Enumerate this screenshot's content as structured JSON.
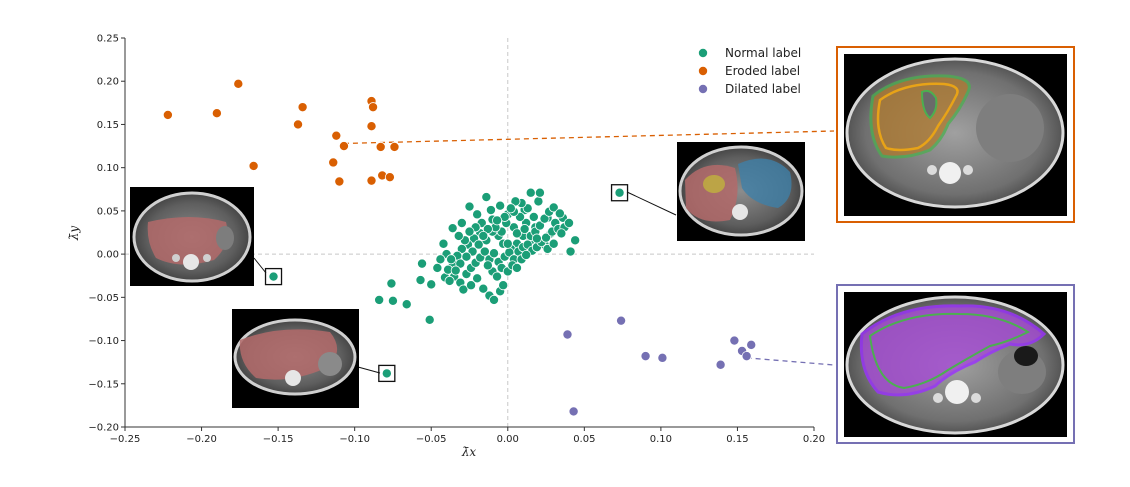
{
  "chart_data": {
    "type": "scatter",
    "xlabel": "λ̄x",
    "ylabel": "λ̄y",
    "xlim": [
      -0.25,
      0.2
    ],
    "ylim": [
      -0.2,
      0.25
    ],
    "x_ticks": [
      -0.25,
      -0.2,
      -0.15,
      -0.1,
      -0.05,
      0.0,
      0.05,
      0.1,
      0.15,
      0.2
    ],
    "x_tick_labels": [
      "−0.25",
      "−0.20",
      "−0.15",
      "−0.10",
      "−0.05",
      "0.00",
      "0.05",
      "0.10",
      "0.15",
      "0.20"
    ],
    "y_ticks": [
      -0.2,
      -0.15,
      -0.1,
      -0.05,
      0.0,
      0.05,
      0.1,
      0.15,
      0.2,
      0.25
    ],
    "y_tick_labels": [
      "−0.20",
      "−0.15",
      "−0.10",
      "−0.05",
      "0.00",
      "0.05",
      "0.10",
      "0.15",
      "0.20",
      "0.25"
    ],
    "grid": false,
    "zero_lines": true,
    "legend_position": "top-right",
    "series": [
      {
        "name": "Normal label",
        "color": "#1b9e77",
        "points": [
          [
            -0.153,
            -0.026
          ],
          [
            0.073,
            0.071
          ],
          [
            -0.079,
            -0.138
          ],
          [
            -0.084,
            -0.053
          ],
          [
            -0.075,
            -0.054
          ],
          [
            -0.066,
            -0.058
          ],
          [
            -0.051,
            -0.076
          ],
          [
            -0.057,
            -0.03
          ],
          [
            -0.056,
            -0.011
          ],
          [
            -0.05,
            -0.035
          ],
          [
            -0.076,
            -0.034
          ],
          [
            -0.041,
            -0.027
          ],
          [
            -0.042,
            0.012
          ],
          [
            -0.036,
            0.03
          ],
          [
            -0.03,
            0.036
          ],
          [
            -0.025,
            0.055
          ],
          [
            -0.02,
            0.046
          ],
          [
            -0.014,
            0.066
          ],
          [
            -0.01,
            0.04
          ],
          [
            -0.005,
            0.056
          ],
          [
            0.0,
            0.046
          ],
          [
            0.004,
            0.031
          ],
          [
            0.011,
            0.051
          ],
          [
            0.015,
            0.071
          ],
          [
            0.02,
            0.061
          ],
          [
            0.021,
            0.071
          ],
          [
            0.026,
            0.042
          ],
          [
            0.031,
            0.036
          ],
          [
            0.036,
            0.042
          ],
          [
            0.041,
            0.003
          ],
          [
            0.044,
            0.016
          ],
          [
            0.024,
            0.011
          ],
          [
            0.028,
            0.024
          ],
          [
            0.018,
            0.031
          ],
          [
            0.015,
            0.016
          ],
          [
            0.01,
            0.021
          ],
          [
            0.006,
            0.012
          ],
          [
            0.002,
            0.006
          ],
          [
            -0.003,
            0.012
          ],
          [
            -0.006,
            0.021
          ],
          [
            -0.01,
            0.026
          ],
          [
            -0.014,
            0.016
          ],
          [
            -0.018,
            0.024
          ],
          [
            -0.022,
            0.018
          ],
          [
            -0.026,
            0.011
          ],
          [
            -0.03,
            0.006
          ],
          [
            -0.033,
            -0.002
          ],
          [
            -0.036,
            -0.01
          ],
          [
            -0.039,
            -0.018
          ],
          [
            -0.035,
            -0.026
          ],
          [
            -0.031,
            -0.033
          ],
          [
            -0.027,
            -0.023
          ],
          [
            -0.024,
            -0.016
          ],
          [
            -0.021,
            -0.01
          ],
          [
            -0.018,
            -0.004
          ],
          [
            -0.015,
            0.003
          ],
          [
            -0.012,
            -0.006
          ],
          [
            -0.009,
            0.001
          ],
          [
            -0.006,
            -0.009
          ],
          [
            -0.004,
            -0.016
          ],
          [
            -0.002,
            -0.003
          ],
          [
            0.001,
            0.002
          ],
          [
            0.004,
            -0.006
          ],
          [
            0.007,
            0.003
          ],
          [
            0.01,
            0.008
          ],
          [
            0.013,
            0.011
          ],
          [
            0.016,
            0.004
          ],
          [
            0.019,
            0.008
          ],
          [
            0.022,
            0.014
          ],
          [
            0.025,
            0.019
          ],
          [
            0.029,
            0.026
          ],
          [
            0.033,
            0.029
          ],
          [
            0.037,
            0.031
          ],
          [
            0.012,
            0.036
          ],
          [
            0.008,
            0.043
          ],
          [
            0.004,
            0.049
          ],
          [
            -0.001,
            0.036
          ],
          [
            -0.004,
            0.026
          ],
          [
            -0.008,
            0.031
          ],
          [
            -0.011,
            0.051
          ],
          [
            -0.017,
            0.036
          ],
          [
            -0.021,
            0.031
          ],
          [
            -0.025,
            0.026
          ],
          [
            -0.028,
            0.016
          ],
          [
            -0.032,
            0.021
          ],
          [
            -0.04,
            0.0
          ],
          [
            -0.044,
            -0.006
          ],
          [
            -0.046,
            -0.016
          ],
          [
            -0.038,
            -0.031
          ],
          [
            -0.029,
            -0.041
          ],
          [
            -0.024,
            -0.036
          ],
          [
            -0.02,
            -0.028
          ],
          [
            -0.016,
            -0.04
          ],
          [
            -0.012,
            -0.048
          ],
          [
            -0.009,
            -0.053
          ],
          [
            -0.005,
            -0.043
          ],
          [
            -0.003,
            -0.036
          ],
          [
            -0.01,
            -0.02
          ],
          [
            -0.013,
            -0.013
          ],
          [
            -0.007,
            -0.026
          ],
          [
            0.0,
            -0.02
          ],
          [
            0.003,
            -0.013
          ],
          [
            0.006,
            -0.016
          ],
          [
            0.009,
            -0.006
          ],
          [
            0.012,
            -0.001
          ],
          [
            0.015,
            0.021
          ],
          [
            0.018,
            0.026
          ],
          [
            0.021,
            0.033
          ],
          [
            0.024,
            0.041
          ],
          [
            0.027,
            0.049
          ],
          [
            0.03,
            0.054
          ],
          [
            0.034,
            0.047
          ],
          [
            0.017,
            0.043
          ],
          [
            0.013,
            0.053
          ],
          [
            0.009,
            0.059
          ],
          [
            0.005,
            0.061
          ],
          [
            0.002,
            0.053
          ],
          [
            -0.002,
            0.043
          ],
          [
            -0.007,
            0.039
          ],
          [
            -0.013,
            0.029
          ],
          [
            -0.016,
            0.021
          ],
          [
            -0.019,
            0.011
          ],
          [
            -0.023,
            0.003
          ],
          [
            -0.027,
            -0.003
          ],
          [
            -0.031,
            -0.011
          ],
          [
            -0.034,
            -0.019
          ],
          [
            -0.037,
            -0.006
          ],
          [
            0.0,
            0.012
          ],
          [
            0.006,
            0.024
          ],
          [
            0.019,
            0.018
          ],
          [
            0.026,
            0.006
          ],
          [
            0.03,
            0.012
          ],
          [
            0.035,
            0.024
          ],
          [
            0.04,
            0.036
          ],
          [
            0.011,
            0.029
          ]
        ]
      },
      {
        "name": "Eroded label",
        "color": "#d95f02",
        "points": [
          [
            -0.222,
            0.161
          ],
          [
            -0.19,
            0.163
          ],
          [
            -0.176,
            0.197
          ],
          [
            -0.166,
            0.102
          ],
          [
            -0.137,
            0.15
          ],
          [
            -0.134,
            0.17
          ],
          [
            -0.114,
            0.106
          ],
          [
            -0.112,
            0.137
          ],
          [
            -0.11,
            0.084
          ],
          [
            -0.107,
            0.125
          ],
          [
            -0.089,
            0.177
          ],
          [
            -0.088,
            0.17
          ],
          [
            -0.089,
            0.148
          ],
          [
            -0.089,
            0.085
          ],
          [
            -0.083,
            0.124
          ],
          [
            -0.082,
            0.091
          ],
          [
            -0.077,
            0.089
          ],
          [
            -0.074,
            0.124
          ]
        ]
      },
      {
        "name": "Dilated label",
        "color": "#7570b3",
        "points": [
          [
            0.039,
            -0.093
          ],
          [
            0.074,
            -0.077
          ],
          [
            0.09,
            -0.118
          ],
          [
            0.101,
            -0.12
          ],
          [
            0.139,
            -0.128
          ],
          [
            0.148,
            -0.1
          ],
          [
            0.153,
            -0.112
          ],
          [
            0.156,
            -0.118
          ],
          [
            0.159,
            -0.105
          ],
          [
            0.043,
            -0.182
          ]
        ]
      }
    ],
    "annotations": [
      {
        "type": "boxed-point",
        "series": "Normal label",
        "point": [
          -0.153,
          -0.026
        ]
      },
      {
        "type": "boxed-point",
        "series": "Normal label",
        "point": [
          0.073,
          0.071
        ]
      },
      {
        "type": "boxed-point",
        "series": "Normal label",
        "point": [
          -0.079,
          -0.138
        ]
      },
      {
        "type": "dashed-leader",
        "series": "Eroded label",
        "from": [
          -0.107,
          0.128
        ],
        "to_inset": "eroded-inset",
        "color": "#d95f02"
      },
      {
        "type": "dashed-leader",
        "series": "Dilated label",
        "from": [
          0.156,
          -0.12
        ],
        "to_inset": "dilated-inset",
        "color": "#7570b3"
      }
    ]
  },
  "insets": {
    "eroded_border_color": "#d95f02",
    "dilated_border_color": "#7570b3",
    "eroded_contour_color": "#e8a317",
    "dilated_contour_color": "#9b30ff",
    "reference_contour_color": "#4caf50"
  }
}
